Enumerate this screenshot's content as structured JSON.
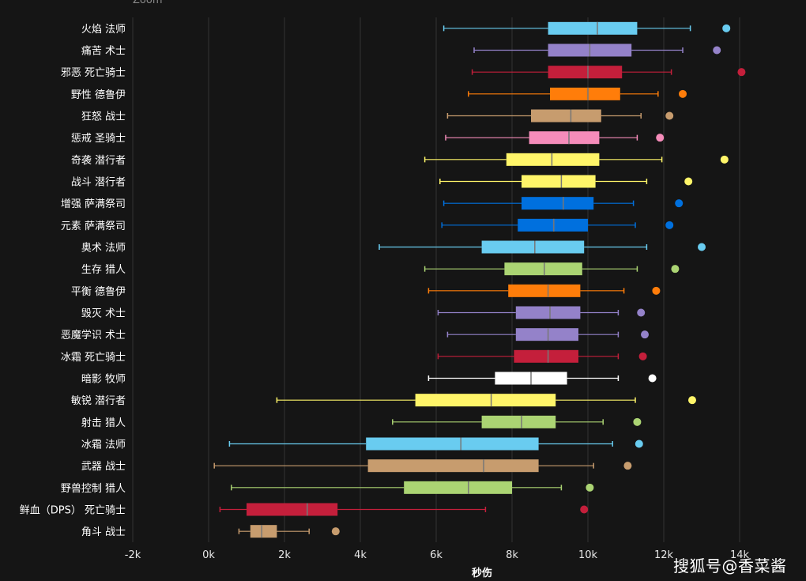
{
  "zoom_label": "Zoom",
  "watermark": "搜狐号@香菜酱",
  "chart_data": {
    "type": "box",
    "xlabel": "秒伤",
    "ylabel": "",
    "xlim": [
      -2000,
      15000
    ],
    "xticks": [
      -2000,
      0,
      2000,
      4000,
      6000,
      8000,
      10000,
      12000,
      14000
    ],
    "xtick_labels": [
      "-2k",
      "0k",
      "2k",
      "4k",
      "6k",
      "8k",
      "10k",
      "12k",
      "14k"
    ],
    "grid": true,
    "series": [
      {
        "name": "火焰 法师",
        "color": "#69ccf0",
        "min": 6200,
        "q1": 8950,
        "median": 10250,
        "q3": 11300,
        "max": 12700,
        "outlier": 13650
      },
      {
        "name": "痛苦 术士",
        "color": "#9482c9",
        "min": 7000,
        "q1": 8950,
        "median": 10050,
        "q3": 11150,
        "max": 12500,
        "outlier": 13400
      },
      {
        "name": "邪恶 死亡骑士",
        "color": "#c41f3b",
        "min": 6950,
        "q1": 8950,
        "median": 10000,
        "q3": 10900,
        "max": 12200,
        "outlier": 14050
      },
      {
        "name": "野性 德鲁伊",
        "color": "#ff7d0a",
        "min": 6850,
        "q1": 9000,
        "median": 10000,
        "q3": 10850,
        "max": 11850,
        "outlier": 12500
      },
      {
        "name": "狂怒 战士",
        "color": "#c79c6e",
        "min": 6300,
        "q1": 8500,
        "median": 9550,
        "q3": 10350,
        "max": 11400,
        "outlier": 12150
      },
      {
        "name": "惩戒 圣骑士",
        "color": "#f58cba",
        "min": 6250,
        "q1": 8450,
        "median": 9500,
        "q3": 10300,
        "max": 11300,
        "outlier": 11900
      },
      {
        "name": "奇袭 潜行者",
        "color": "#fff569",
        "min": 5700,
        "q1": 7850,
        "median": 9050,
        "q3": 10300,
        "max": 11950,
        "outlier": 13600
      },
      {
        "name": "战斗 潜行者",
        "color": "#fff569",
        "min": 6100,
        "q1": 8250,
        "median": 9300,
        "q3": 10200,
        "max": 11550,
        "outlier": 12650
      },
      {
        "name": "增强 萨满祭司",
        "color": "#0070de",
        "min": 6200,
        "q1": 8250,
        "median": 9350,
        "q3": 10150,
        "max": 11200,
        "outlier": 12400
      },
      {
        "name": "元素 萨满祭司",
        "color": "#0070de",
        "min": 6150,
        "q1": 8150,
        "median": 9100,
        "q3": 10000,
        "max": 11250,
        "outlier": 12150
      },
      {
        "name": "奥术 法师",
        "color": "#69ccf0",
        "min": 4500,
        "q1": 7200,
        "median": 8600,
        "q3": 9900,
        "max": 11550,
        "outlier": 13000
      },
      {
        "name": "生存 猎人",
        "color": "#abd473",
        "min": 5700,
        "q1": 7800,
        "median": 8850,
        "q3": 9850,
        "max": 11300,
        "outlier": 12300
      },
      {
        "name": "平衡 德鲁伊",
        "color": "#ff7d0a",
        "min": 5800,
        "q1": 7900,
        "median": 8950,
        "q3": 9800,
        "max": 10950,
        "outlier": 11800
      },
      {
        "name": "毁灭 术士",
        "color": "#9482c9",
        "min": 6050,
        "q1": 8100,
        "median": 9000,
        "q3": 9800,
        "max": 10800,
        "outlier": 11400
      },
      {
        "name": "恶魔学识 术士",
        "color": "#9482c9",
        "min": 6300,
        "q1": 8100,
        "median": 8950,
        "q3": 9750,
        "max": 10800,
        "outlier": 11500
      },
      {
        "name": "冰霜 死亡骑士",
        "color": "#c41f3b",
        "min": 6050,
        "q1": 8050,
        "median": 8950,
        "q3": 9750,
        "max": 10800,
        "outlier": 11450
      },
      {
        "name": "暗影 牧师",
        "color": "#ffffff",
        "min": 5800,
        "q1": 7550,
        "median": 8500,
        "q3": 9450,
        "max": 10800,
        "outlier": 11700
      },
      {
        "name": "敏锐 潜行者",
        "color": "#fff569",
        "min": 1800,
        "q1": 5450,
        "median": 7450,
        "q3": 9150,
        "max": 11250,
        "outlier": 12750
      },
      {
        "name": "射击 猎人",
        "color": "#abd473",
        "min": 4850,
        "q1": 7200,
        "median": 8250,
        "q3": 9150,
        "max": 10400,
        "outlier": 11300
      },
      {
        "name": "冰霜 法师",
        "color": "#69ccf0",
        "min": 550,
        "q1": 4150,
        "median": 6650,
        "q3": 8700,
        "max": 10650,
        "outlier": 11350
      },
      {
        "name": "武器 战士",
        "color": "#c79c6e",
        "min": 150,
        "q1": 4200,
        "median": 7250,
        "q3": 8700,
        "max": 10150,
        "outlier": 11050
      },
      {
        "name": "野兽控制 猎人",
        "color": "#abd473",
        "min": 600,
        "q1": 5150,
        "median": 6850,
        "q3": 8000,
        "max": 9300,
        "outlier": 10050
      },
      {
        "name": "鲜血（DPS） 死亡骑士",
        "color": "#c41f3b",
        "min": 300,
        "q1": 1000,
        "median": 2600,
        "q3": 3400,
        "max": 7300,
        "outlier": 9900
      },
      {
        "name": "角斗 战士",
        "color": "#c79c6e",
        "min": 800,
        "q1": 1100,
        "median": 1400,
        "q3": 1800,
        "max": 2650,
        "outlier": 3350
      }
    ]
  }
}
